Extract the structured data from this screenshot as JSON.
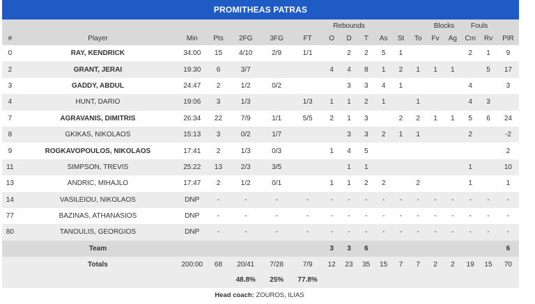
{
  "title": "PROMITHEAS PATRAS",
  "groups": {
    "rebounds": "Rebounds",
    "blocks": "Blocks",
    "fouls": "Fouls"
  },
  "columns": [
    "#",
    "Player",
    "Min",
    "Pts",
    "2FG",
    "3FG",
    "FT",
    "O",
    "D",
    "T",
    "As",
    "St",
    "To",
    "Fv",
    "Ag",
    "Cm",
    "Rv",
    "PIR"
  ],
  "players": [
    {
      "num": "0",
      "name": "RAY, KENDRICK",
      "bold": true,
      "min": "34:00",
      "pts": "15",
      "fg2": "4/10",
      "fg3": "2/9",
      "ft": "1/1",
      "o": "",
      "d": "2",
      "t": "2",
      "as": "5",
      "st": "1",
      "to": "",
      "fv": "",
      "ag": "",
      "cm": "2",
      "rv": "1",
      "pir": "9"
    },
    {
      "num": "2",
      "name": "GRANT, JERAI",
      "bold": true,
      "min": "19:30",
      "pts": "6",
      "fg2": "3/7",
      "fg3": "",
      "ft": "",
      "o": "4",
      "d": "4",
      "t": "8",
      "as": "1",
      "st": "2",
      "to": "1",
      "fv": "1",
      "ag": "1",
      "cm": "",
      "rv": "5",
      "pir": "17"
    },
    {
      "num": "3",
      "name": "GADDY, ABDUL",
      "bold": true,
      "min": "24:47",
      "pts": "2",
      "fg2": "1/2",
      "fg3": "0/2",
      "ft": "",
      "o": "",
      "d": "3",
      "t": "3",
      "as": "4",
      "st": "1",
      "to": "",
      "fv": "",
      "ag": "",
      "cm": "4",
      "rv": "",
      "pir": "3"
    },
    {
      "num": "4",
      "name": "HUNT, DARIO",
      "bold": false,
      "min": "19:06",
      "pts": "3",
      "fg2": "1/3",
      "fg3": "",
      "ft": "1/3",
      "o": "1",
      "d": "1",
      "t": "2",
      "as": "1",
      "st": "",
      "to": "1",
      "fv": "",
      "ag": "",
      "cm": "4",
      "rv": "3",
      "pir": ""
    },
    {
      "num": "7",
      "name": "AGRAVANIS, DIMITRIS",
      "bold": true,
      "min": "26:34",
      "pts": "22",
      "fg2": "7/9",
      "fg3": "1/1",
      "ft": "5/5",
      "o": "2",
      "d": "1",
      "t": "3",
      "as": "",
      "st": "2",
      "to": "2",
      "fv": "1",
      "ag": "1",
      "cm": "5",
      "rv": "6",
      "pir": "24"
    },
    {
      "num": "8",
      "name": "GKIKAS, NIKOLAOS",
      "bold": false,
      "min": "15:13",
      "pts": "3",
      "fg2": "0/2",
      "fg3": "1/7",
      "ft": "",
      "o": "",
      "d": "3",
      "t": "3",
      "as": "2",
      "st": "1",
      "to": "1",
      "fv": "",
      "ag": "",
      "cm": "2",
      "rv": "",
      "pir": "-2"
    },
    {
      "num": "9",
      "name": "ROGKAVOPOULOS, NIKOLAOS",
      "bold": true,
      "min": "17:41",
      "pts": "2",
      "fg2": "1/3",
      "fg3": "0/3",
      "ft": "",
      "o": "1",
      "d": "4",
      "t": "5",
      "as": "",
      "st": "",
      "to": "",
      "fv": "",
      "ag": "",
      "cm": "",
      "rv": "",
      "pir": "2"
    },
    {
      "num": "11",
      "name": "SIMPSON, TREVIS",
      "bold": false,
      "min": "25:22",
      "pts": "13",
      "fg2": "2/3",
      "fg3": "3/5",
      "ft": "",
      "o": "",
      "d": "1",
      "t": "1",
      "as": "",
      "st": "",
      "to": "",
      "fv": "",
      "ag": "",
      "cm": "1",
      "rv": "",
      "pir": "10"
    },
    {
      "num": "13",
      "name": "ANDRIC, MIHAJLO",
      "bold": false,
      "min": "17:47",
      "pts": "2",
      "fg2": "1/2",
      "fg3": "0/1",
      "ft": "",
      "o": "1",
      "d": "1",
      "t": "2",
      "as": "2",
      "st": "",
      "to": "2",
      "fv": "",
      "ag": "",
      "cm": "1",
      "rv": "",
      "pir": "1"
    },
    {
      "num": "14",
      "name": "VASILEIOU, NIKOLAOS",
      "bold": false,
      "min": "DNP",
      "pts": "-",
      "fg2": "-",
      "fg3": "-",
      "ft": "-",
      "o": "-",
      "d": "-",
      "t": "-",
      "as": "-",
      "st": "-",
      "to": "-",
      "fv": "-",
      "ag": "-",
      "cm": "-",
      "rv": "-",
      "pir": "-"
    },
    {
      "num": "77",
      "name": "BAZINAS, ATHANASIOS",
      "bold": false,
      "min": "DNP",
      "pts": "-",
      "fg2": "-",
      "fg3": "-",
      "ft": "-",
      "o": "-",
      "d": "-",
      "t": "-",
      "as": "-",
      "st": "-",
      "to": "-",
      "fv": "-",
      "ag": "-",
      "cm": "-",
      "rv": "-",
      "pir": "-"
    },
    {
      "num": "80",
      "name": "TANOULIS, GEORGIOS",
      "bold": false,
      "min": "DNP",
      "pts": "-",
      "fg2": "-",
      "fg3": "-",
      "ft": "-",
      "o": "-",
      "d": "-",
      "t": "-",
      "as": "-",
      "st": "-",
      "to": "-",
      "fv": "-",
      "ag": "-",
      "cm": "-",
      "rv": "-",
      "pir": "-"
    }
  ],
  "team": {
    "label": "Team",
    "o": "3",
    "d": "3",
    "t": "6",
    "pir": "6"
  },
  "totals": {
    "label": "Totals",
    "min": "200:00",
    "pts": "68",
    "fg2": "20/41",
    "fg3": "7/28",
    "ft": "7/9",
    "o": "12",
    "d": "23",
    "t": "35",
    "as": "15",
    "st": "7",
    "to": "7",
    "fv": "2",
    "ag": "2",
    "cm": "19",
    "rv": "15",
    "pir": "70"
  },
  "percentages": {
    "fg2": "48.8%",
    "fg3": "25%",
    "ft": "77.8%"
  },
  "coach": {
    "label": "Head coach:",
    "name": "ZOUROS, ILIAS"
  },
  "colors": {
    "title_bg": "#1f5bc4",
    "header_bg": "#d9d9d9",
    "row_alt": "#ececec"
  }
}
